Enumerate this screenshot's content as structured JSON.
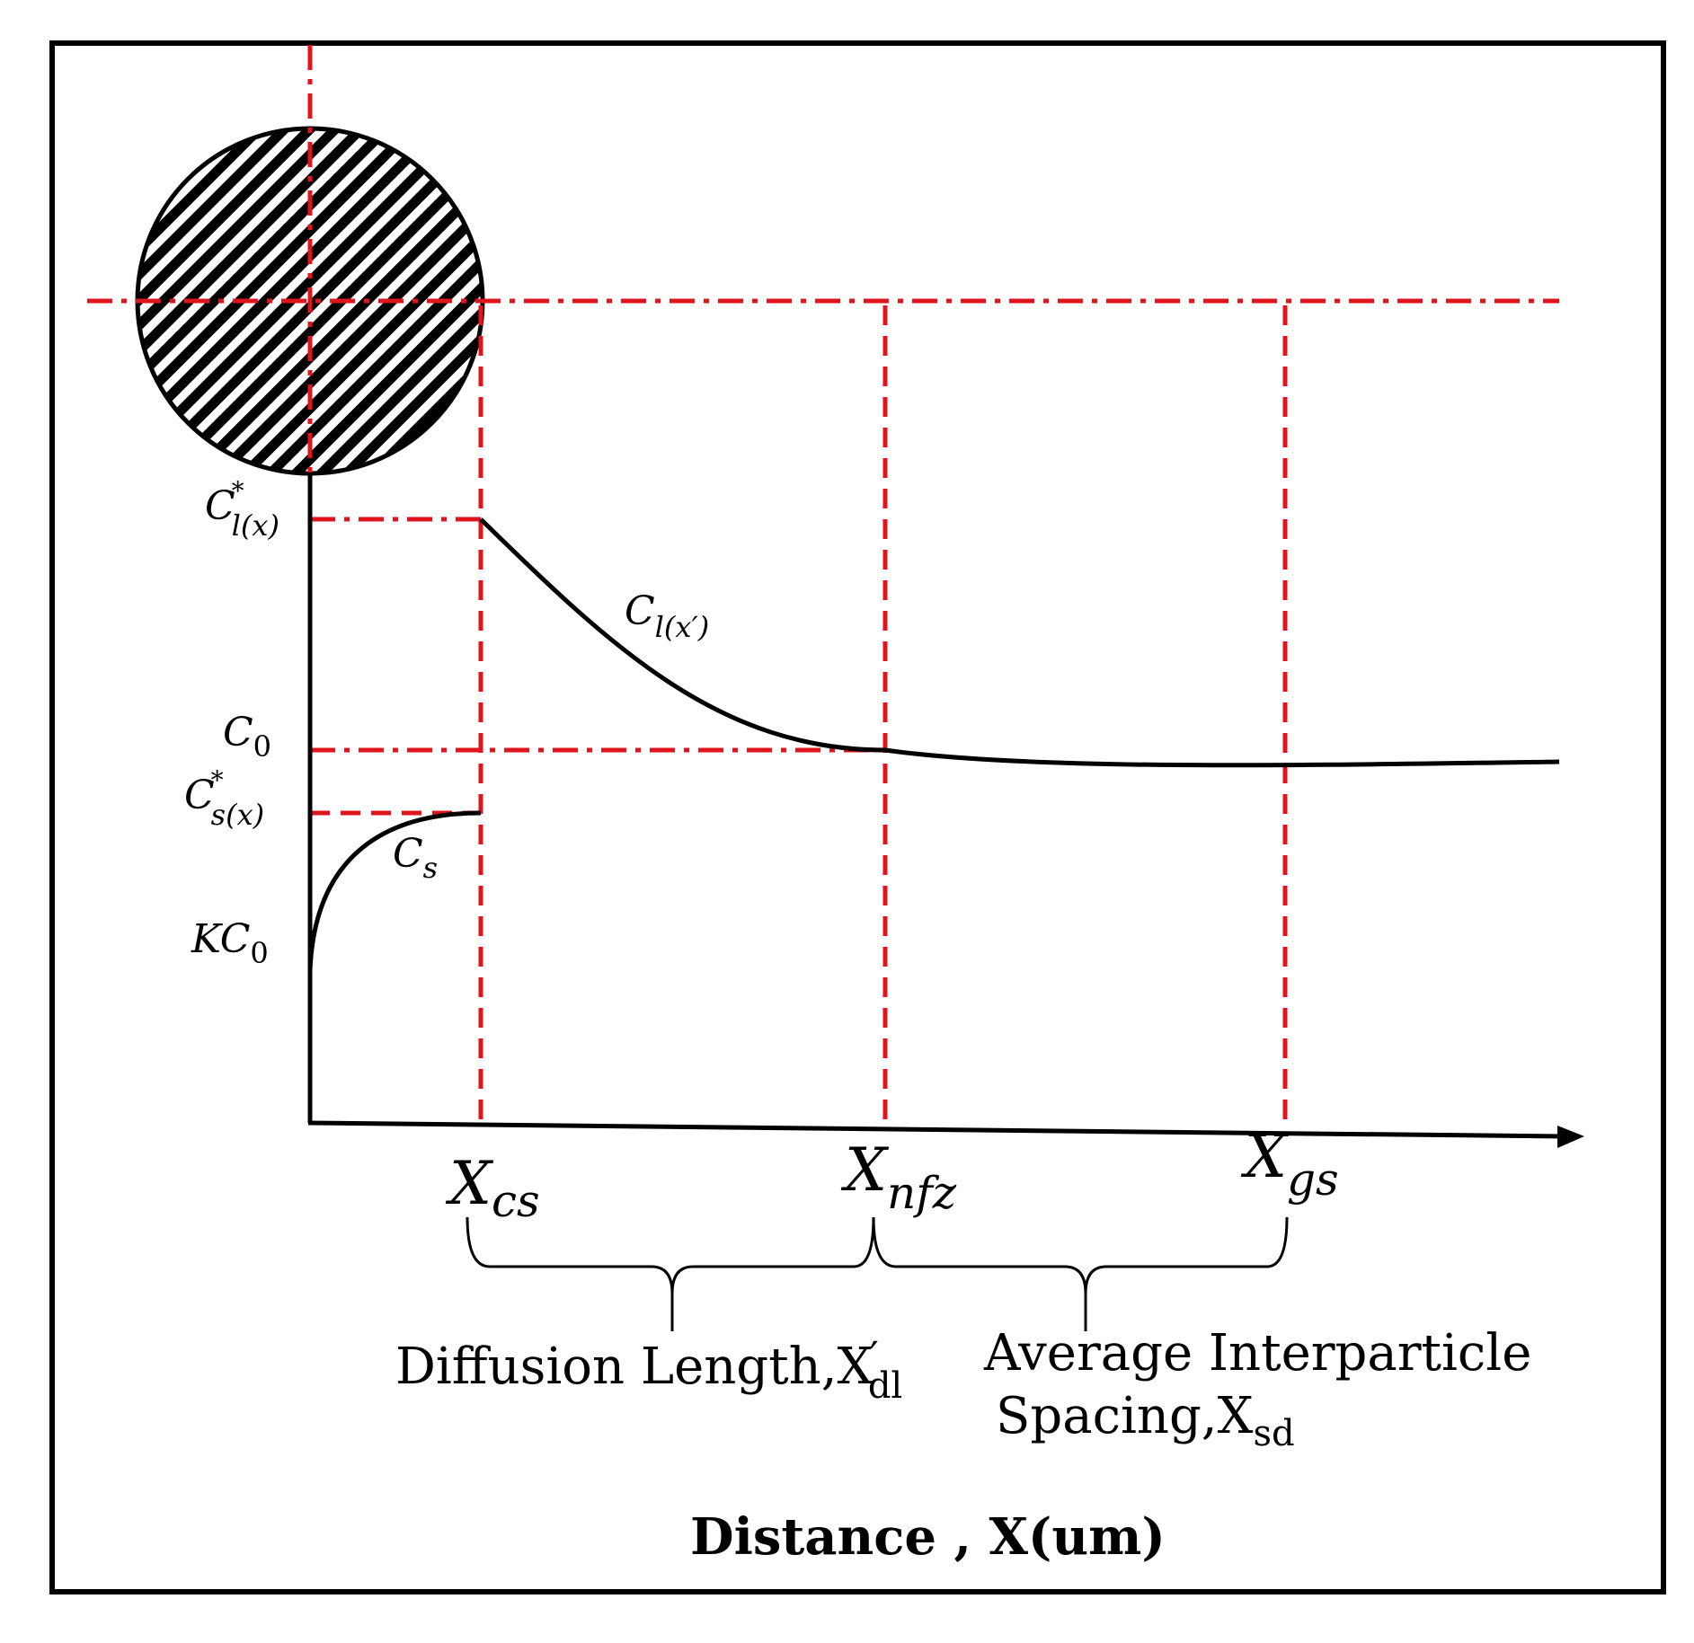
{
  "diagram": {
    "colors": {
      "guide": "#e0141c",
      "ink": "#000000",
      "background": "#ffffff"
    },
    "y_labels": {
      "cl_star": {
        "base": "C",
        "sup": "*",
        "sub": "l(x)"
      },
      "c0": {
        "base": "C",
        "sub": "0"
      },
      "cs_star": {
        "base": "C",
        "sup": "*",
        "sub": "s(x)"
      },
      "kc0": {
        "base": "KC",
        "sub": "0"
      }
    },
    "curve_labels": {
      "cl_prime": {
        "base": "C",
        "sub": "l(x′)"
      },
      "cs": {
        "base": "C",
        "sub": "s"
      }
    },
    "x_labels": {
      "xcs": {
        "base": "X",
        "sub": "cs"
      },
      "xnfz": {
        "base": "X",
        "sub": "nfz"
      },
      "xgs": {
        "base": "X",
        "sub": "gs"
      }
    },
    "braces": {
      "diffusion": {
        "text": "Diffusion Length,X",
        "prime": "′",
        "sub": "dl"
      },
      "spacing": {
        "line1": "Average Interparticle",
        "line2": "Spacing,X",
        "sub": "sd"
      }
    },
    "axis_title": "Distance , X(um)",
    "particle": {
      "shape": "circle",
      "fill": "diagonal-hatch"
    }
  }
}
